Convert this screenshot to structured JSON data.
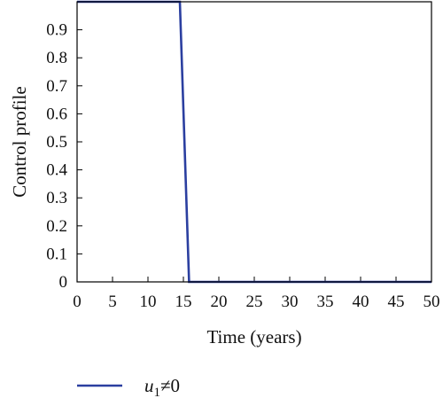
{
  "chart_data": {
    "type": "line",
    "xlabel": "Time (years)",
    "ylabel": "Control profile",
    "xlim": [
      0,
      50
    ],
    "ylim": [
      0,
      1
    ],
    "x_ticks": [
      0,
      5,
      10,
      15,
      20,
      25,
      30,
      35,
      40,
      45,
      50
    ],
    "y_ticks": [
      0,
      0.1,
      0.2,
      0.3,
      0.4,
      0.5,
      0.6,
      0.7,
      0.8,
      0.9
    ],
    "grid": false,
    "legend_position": "bottom-left",
    "series": [
      {
        "name": "u1≠0",
        "color": "#2b3fa0",
        "x": [
          0,
          14.5,
          15.8,
          50
        ],
        "y": [
          1,
          1,
          0,
          0
        ]
      }
    ]
  },
  "legend": {
    "symbol": "u",
    "subscript": "1",
    "suffix": "≠0"
  }
}
